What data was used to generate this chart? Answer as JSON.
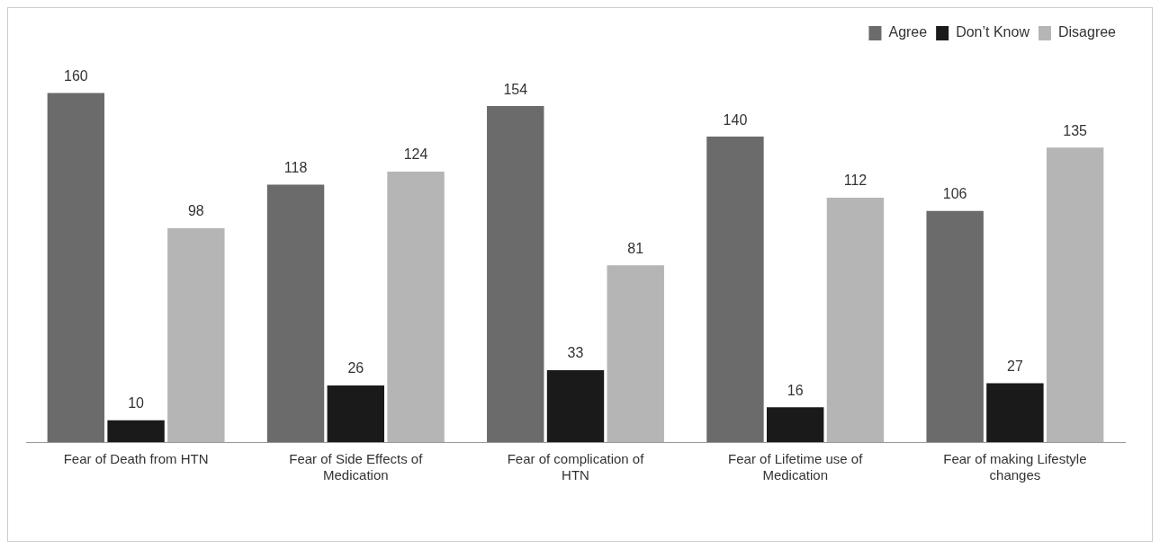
{
  "chart_data": {
    "type": "bar",
    "categories": [
      "Fear of Death from HTN",
      "Fear of Side Effects of Medication",
      "Fear of complication of HTN",
      "Fear of Lifetime use of Medication",
      "Fear of making Lifestyle changes"
    ],
    "series": [
      {
        "name": "Agree",
        "color": "#6b6b6b",
        "values": [
          160,
          118,
          154,
          140,
          106
        ]
      },
      {
        "name": "Don’t Know",
        "color": "#1a1a1a",
        "values": [
          10,
          26,
          33,
          16,
          27
        ]
      },
      {
        "name": "Disagree",
        "color": "#b5b5b5",
        "values": [
          98,
          124,
          81,
          112,
          135
        ]
      }
    ],
    "data_labels": true,
    "legend": "top right",
    "grid": false
  }
}
